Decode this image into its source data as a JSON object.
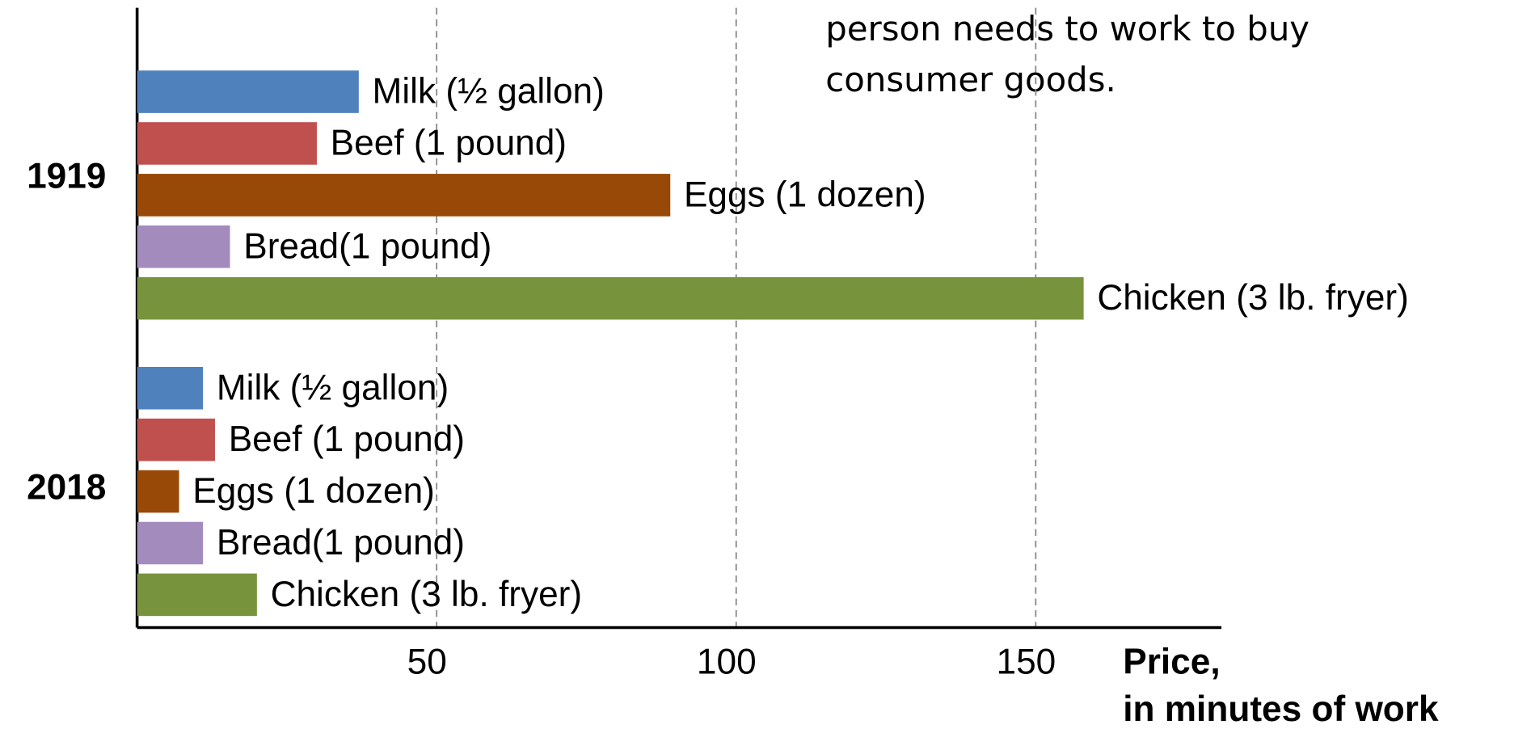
{
  "chart_data": {
    "type": "bar",
    "orientation": "horizontal",
    "annotation": [
      "person needs to work to buy",
      "consumer goods."
    ],
    "x_label": [
      "Price,",
      "in minutes of work"
    ],
    "categories": [
      "1919",
      "2018"
    ],
    "series": [
      {
        "name": "Milk (½ gallon)",
        "color": "#4f81bd",
        "values": [
          37,
          11
        ]
      },
      {
        "name": "Beef (1 pound)",
        "color": "#c0504d",
        "values": [
          30,
          13
        ]
      },
      {
        "name": "Eggs (1 dozen)",
        "color": "#984807",
        "values": [
          89,
          7
        ]
      },
      {
        "name": "Bread(1 pound)",
        "color": "#a48bbd",
        "values": [
          15.5,
          11
        ]
      },
      {
        "name": "Chicken (3 lb. fryer)",
        "color": "#77933c",
        "values": [
          158,
          20
        ]
      }
    ],
    "xlim": [
      0,
      181
    ],
    "xticks": [
      50,
      100,
      150
    ],
    "grid": true
  }
}
